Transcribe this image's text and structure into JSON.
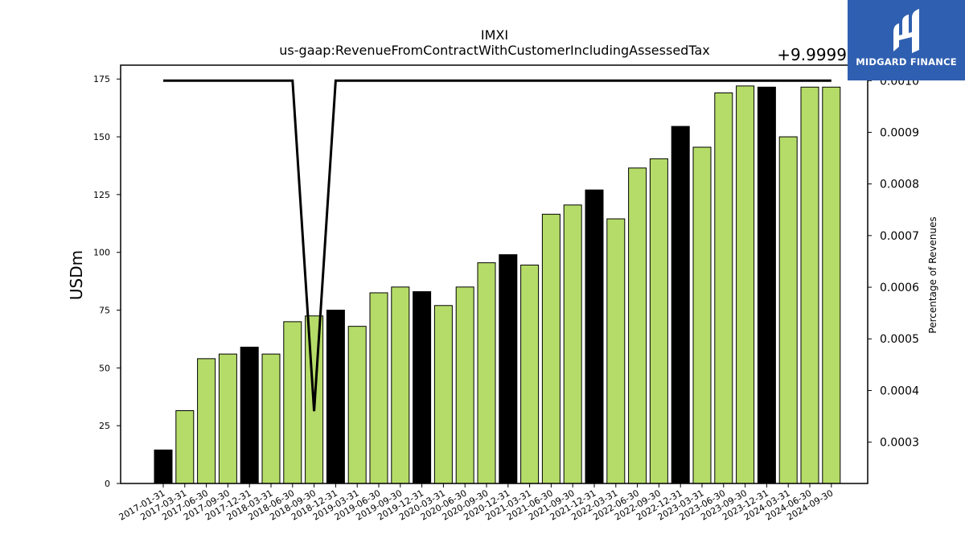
{
  "chart_data": {
    "type": "bar",
    "title": "IMXI",
    "subtitle": "us-gaap:RevenueFromContractWithCustomerIncludingAssessedTax",
    "ylabel": "USDm",
    "y2label": "Percentage of Revenues",
    "y2_offset_label": "+9.9999",
    "ylim": [
      0,
      181
    ],
    "y2lim": [
      0.00022,
      0.00103
    ],
    "y_ticks": [
      0,
      25,
      50,
      75,
      100,
      125,
      150,
      175
    ],
    "y2_ticks": [
      0.0003,
      0.0004,
      0.0005,
      0.0006,
      0.0007,
      0.0008,
      0.0009,
      0.001
    ],
    "grid": false,
    "colors": {
      "quarter": "#b5dc68",
      "annual": "#000000",
      "line": "#000000"
    },
    "categories": [
      "2017-01-31",
      "2017-03-31",
      "2017-06-30",
      "2017-09-30",
      "2017-12-31",
      "2018-03-31",
      "2018-06-30",
      "2018-09-30",
      "2018-12-31",
      "2019-03-31",
      "2019-06-30",
      "2019-09-30",
      "2019-12-31",
      "2020-03-31",
      "2020-06-30",
      "2020-09-30",
      "2020-12-31",
      "2021-03-31",
      "2021-06-30",
      "2021-09-30",
      "2021-12-31",
      "2022-03-31",
      "2022-06-30",
      "2022-09-30",
      "2022-12-31",
      "2023-03-31",
      "2023-06-30",
      "2023-09-30",
      "2023-12-31",
      "2024-03-31",
      "2024-06-30",
      "2024-09-30"
    ],
    "series": [
      {
        "type": "bar",
        "values": [
          14.5,
          31.5,
          54,
          56,
          59,
          56,
          70,
          72.5,
          75,
          68,
          82.5,
          85,
          83,
          77,
          85,
          95.5,
          99,
          94.5,
          116.5,
          120.5,
          127,
          114.5,
          136.5,
          140.5,
          154.5,
          145.5,
          169,
          172,
          171.5,
          150,
          171.5,
          171.5
        ],
        "annual": [
          true,
          false,
          false,
          false,
          true,
          false,
          false,
          false,
          true,
          false,
          false,
          false,
          true,
          false,
          false,
          false,
          true,
          false,
          false,
          false,
          true,
          false,
          false,
          false,
          true,
          false,
          false,
          false,
          true,
          false,
          false,
          false
        ]
      },
      {
        "type": "line",
        "axis": "y2",
        "values": [
          0.001,
          0.001,
          0.001,
          0.001,
          0.001,
          0.001,
          0.001,
          0.00036,
          0.001,
          0.001,
          0.001,
          0.001,
          0.001,
          0.001,
          0.001,
          0.001,
          0.001,
          0.001,
          0.001,
          0.001,
          0.001,
          0.001,
          0.001,
          0.001,
          0.001,
          0.001,
          0.001,
          0.001,
          0.001,
          0.001,
          0.001,
          0.001
        ]
      }
    ]
  },
  "logo": {
    "text": "MIDGARD FINANCE",
    "icon": "midgard-logo-icon",
    "background": "#2f5fb0"
  }
}
